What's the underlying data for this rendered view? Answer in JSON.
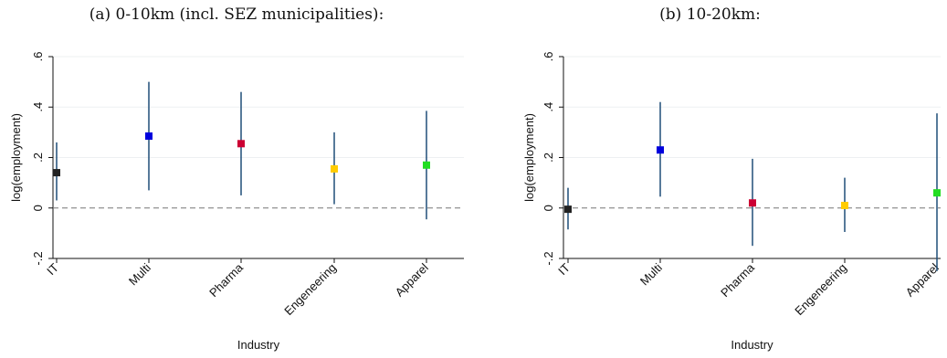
{
  "panels": [
    {
      "title": "(a) 0-10km (incl. SEZ municipalities):"
    },
    {
      "title": "(b) 10-20km:"
    }
  ],
  "chart_data": [
    {
      "type": "scatter",
      "subtype": "coefficient-plot-with-confidence-intervals",
      "title": "(a) 0-10km (incl. SEZ municipalities):",
      "xlabel": "Industry",
      "ylabel": "log(employment)",
      "categories": [
        "IT",
        "Multi",
        "Pharma",
        "Engeneering",
        "Apparel"
      ],
      "ylim": [
        -0.2,
        0.6
      ],
      "yticks": [
        -0.2,
        0,
        0.2,
        0.4,
        0.6
      ],
      "ytick_labels": [
        "-.2",
        "0",
        ".2",
        ".4",
        ".6"
      ],
      "points": [
        {
          "category": "IT",
          "estimate": 0.14,
          "ci_low": 0.03,
          "ci_high": 0.26,
          "color": "#222222"
        },
        {
          "category": "Multi",
          "estimate": 0.285,
          "ci_low": 0.07,
          "ci_high": 0.5,
          "color": "#0000dd"
        },
        {
          "category": "Pharma",
          "estimate": 0.255,
          "ci_low": 0.05,
          "ci_high": 0.46,
          "color": "#cc0033"
        },
        {
          "category": "Engeneering",
          "estimate": 0.155,
          "ci_low": 0.015,
          "ci_high": 0.3,
          "color": "#ffcc00"
        },
        {
          "category": "Apparel",
          "estimate": 0.17,
          "ci_low": -0.045,
          "ci_high": 0.385,
          "color": "#22dd22"
        }
      ],
      "reference_line": 0,
      "grid": true
    },
    {
      "type": "scatter",
      "subtype": "coefficient-plot-with-confidence-intervals",
      "title": "(b) 10-20km:",
      "xlabel": "Industry",
      "ylabel": "log(employment)",
      "categories": [
        "IT",
        "Multi",
        "Pharma",
        "Engeneering",
        "Apparel"
      ],
      "ylim": [
        -0.2,
        0.6
      ],
      "yticks": [
        -0.2,
        0,
        0.2,
        0.4,
        0.6
      ],
      "ytick_labels": [
        "-.2",
        "0",
        ".2",
        ".4",
        ".6"
      ],
      "points": [
        {
          "category": "IT",
          "estimate": -0.005,
          "ci_low": -0.085,
          "ci_high": 0.08,
          "color": "#222222"
        },
        {
          "category": "Multi",
          "estimate": 0.23,
          "ci_low": 0.045,
          "ci_high": 0.42,
          "color": "#0000dd"
        },
        {
          "category": "Pharma",
          "estimate": 0.02,
          "ci_low": -0.15,
          "ci_high": 0.195,
          "color": "#cc0033"
        },
        {
          "category": "Engeneering",
          "estimate": 0.01,
          "ci_low": -0.095,
          "ci_high": 0.12,
          "color": "#ffcc00"
        },
        {
          "category": "Apparel",
          "estimate": 0.06,
          "ci_low": -0.25,
          "ci_high": 0.375,
          "color": "#22dd22"
        }
      ],
      "reference_line": 0,
      "grid": true
    }
  ],
  "style": {
    "ci_color": "#1f4e79",
    "reference_line_color": "#777777",
    "grid_color": "#eef0f2"
  }
}
